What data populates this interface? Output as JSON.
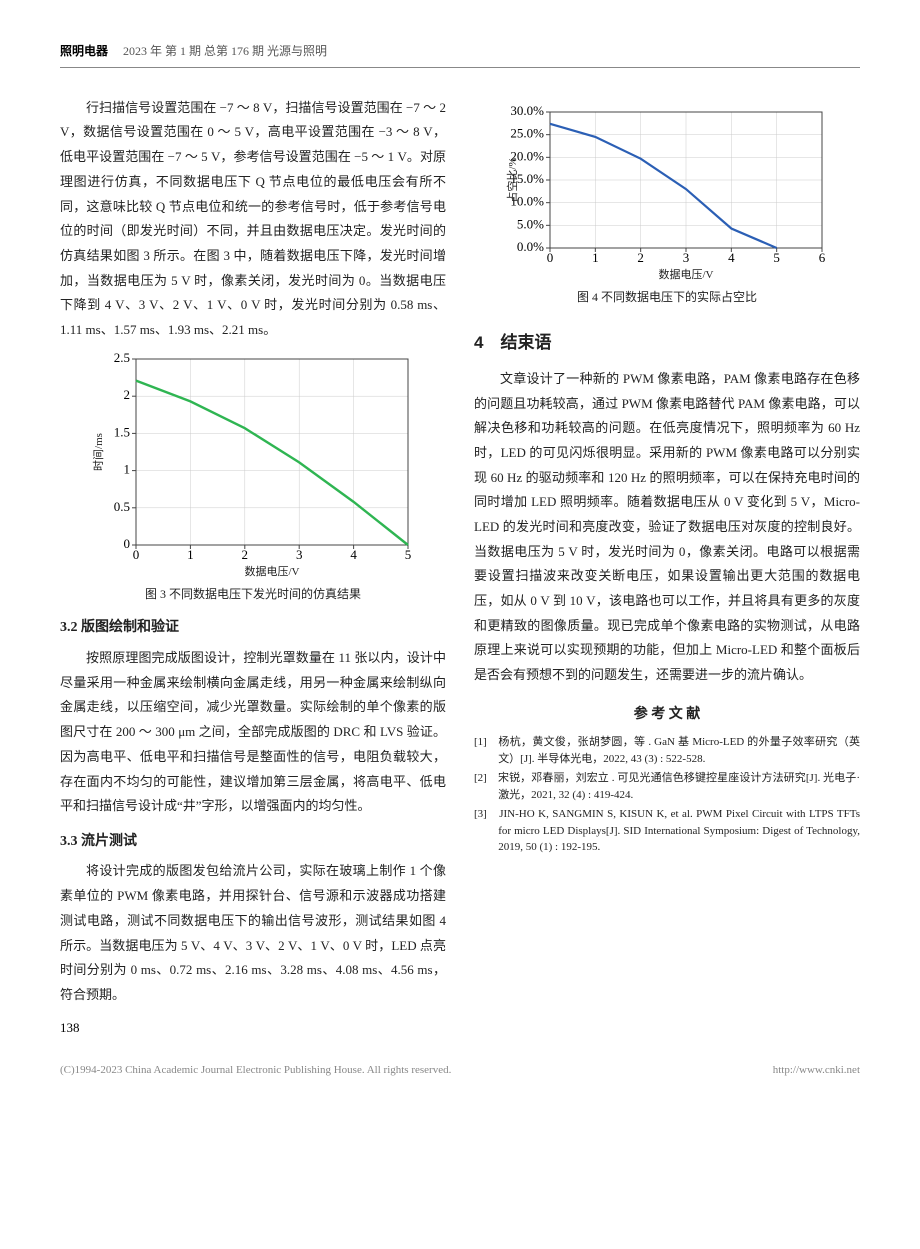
{
  "header": {
    "journal": "照明电器",
    "issue": "2023 年 第 1 期 总第 176 期 光源与照明"
  },
  "leftCol": {
    "para1": "行扫描信号设置范围在 −7 ～ 8 V，扫描信号设置范围在 −7 ～ 2 V，数据信号设置范围在 0 ～ 5 V，高电平设置范围在 −3 ～ 8 V，低电平设置范围在 −7 ～ 5 V，参考信号设置范围在 −5 ～ 1 V。对原理图进行仿真，不同数据电压下 Q 节点电位的最低电压会有所不同，这意味比较 Q 节点电位和统一的参考信号时，低于参考信号电位的时间（即发光时间）不同，并且由数据电压决定。发光时间的仿真结果如图 3 所示。在图 3 中，随着数据电压下降，发光时间增加，当数据电压为 5 V 时，像素关闭，发光时间为 0。当数据电压下降到 4 V、3 V、2 V、1 V、0 V 时，发光时间分别为 0.58 ms、1.11 ms、1.57 ms、1.93 ms、2.21 ms。",
    "fig3": {
      "type": "line",
      "x": [
        0,
        1,
        2,
        3,
        4,
        5
      ],
      "y": [
        2.21,
        1.93,
        1.57,
        1.11,
        0.58,
        0
      ],
      "line_color": "#2fb552",
      "line_width": 2.4,
      "xlim": [
        0,
        5
      ],
      "ylim": [
        0,
        2.5
      ],
      "xticks": [
        0,
        1,
        2,
        3,
        4,
        5
      ],
      "yticks": [
        0,
        0.5,
        1,
        1.5,
        2,
        2.5
      ],
      "xlabel": "数据电压/V",
      "ylabel": "时间/ms",
      "caption": "图 3 不同数据电压下发光时间的仿真结果"
    },
    "h32": "3.2 版图绘制和验证",
    "para32": "按照原理图完成版图设计，控制光罩数量在 11 张以内，设计中尽量采用一种金属来绘制横向金属走线，用另一种金属来绘制纵向金属走线，以压缩空间，减少光罩数量。实际绘制的单个像素的版图尺寸在 200 ～ 300 μm 之间，全部完成版图的 DRC 和 LVS 验证。因为高电平、低电平和扫描信号是整面性的信号，电阻负载较大，存在面内不均匀的可能性，建议增加第三层金属，将高电平、低电平和扫描信号设计成“井”字形，以增强面内的均匀性。",
    "h33": "3.3 流片测试",
    "para33": "将设计完成的版图发包给流片公司，实际在玻璃上制作 1 个像素单位的 PWM 像素电路，并用探针台、信号源和示波器成功搭建测试电路，测试不同数据电压下的输出信号波形，测试结果如图 4 所示。当数据电压为 5 V、4 V、3 V、2 V、1 V、0 V 时，LED 点亮时间分别为 0 ms、0.72 ms、2.16 ms、3.28 ms、4.08 ms、4.56 ms，符合预期。"
  },
  "rightCol": {
    "fig4": {
      "type": "line",
      "x": [
        0,
        1,
        2,
        3,
        4,
        5
      ],
      "y": [
        27.4,
        24.5,
        19.7,
        13.0,
        4.3,
        0
      ],
      "line_color": "#2b5fb5",
      "line_width": 2.2,
      "xlim": [
        0,
        6
      ],
      "ylim": [
        0,
        30
      ],
      "xticks": [
        0,
        1,
        2,
        3,
        4,
        5,
        6
      ],
      "yticks": [
        0,
        5,
        10,
        15,
        20,
        25,
        30
      ],
      "ytick_labels": [
        "0.0%",
        "5.0%",
        "10.0%",
        "15.0%",
        "20.0%",
        "25.0%",
        "30.0%"
      ],
      "xlabel": "数据电压/V",
      "ylabel": "占空比/%",
      "caption": "图 4 不同数据电压下的实际占空比"
    },
    "h4": "4　结束语",
    "para4": "文章设计了一种新的 PWM 像素电路，PAM 像素电路存在色移的问题且功耗较高，通过 PWM 像素电路替代 PAM 像素电路，可以解决色移和功耗较高的问题。在低亮度情况下，照明频率为 60 Hz 时，LED 的可见闪烁很明显。采用新的 PWM 像素电路可以分别实现 60 Hz 的驱动频率和 120 Hz 的照明频率，可以在保持充电时间的同时增加 LED 照明频率。随着数据电压从 0 V 变化到 5 V，Micro-LED 的发光时间和亮度改变，验证了数据电压对灰度的控制良好。当数据电压为 5 V 时，发光时间为 0，像素关闭。电路可以根据需要设置扫描波来改变关断电压，如果设置输出更大范围的数据电压，如从 0 V 到 10 V，该电路也可以工作，并且将具有更多的灰度和更精致的图像质量。现已完成单个像素电路的实物测试，从电路原理上来说可以实现预期的功能，但加上 Micro-LED 和整个面板后是否会有预想不到的问题发生，还需要进一步的流片确认。",
    "refh": "参 考 文 献",
    "refs": [
      "[1]　杨杭，黄文俊，张胡梦圆，等 . GaN 基 Micro-LED 的外量子效率研究（英文）[J]. 半导体光电，2022, 43 (3) : 522-528.",
      "[2]　宋锐，邓春丽，刘宏立 . 可见光通信色移键控星座设计方法研究[J]. 光电子·激光，2021, 32 (4) : 419-424.",
      "[3]　JIN-HO K, SANGMIN S, KISUN K, et al. PWM Pixel Circuit with LTPS TFTs for micro LED Displays[J]. SID International Symposium: Digest of Technology, 2019, 50 (1) : 192-195."
    ]
  },
  "page_number": "138",
  "footer_left": "(C)1994-2023 China Academic Journal Electronic Publishing House. All rights reserved.",
  "footer_right": "http://www.cnki.net"
}
